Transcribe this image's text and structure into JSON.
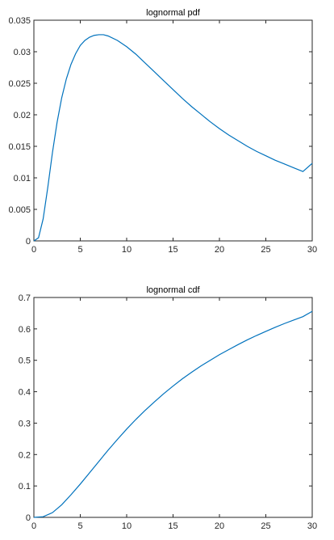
{
  "chart_data": [
    {
      "type": "line",
      "title": "lognormal pdf",
      "xlabel": "",
      "ylabel": "",
      "xlim": [
        0,
        30
      ],
      "ylim": [
        0,
        0.035
      ],
      "xticks": [
        0,
        5,
        10,
        15,
        20,
        25,
        30
      ],
      "xtick_labels": [
        "0",
        "5",
        "10",
        "15",
        "20",
        "25",
        "30"
      ],
      "yticks": [
        0,
        0.005,
        0.01,
        0.015,
        0.02,
        0.025,
        0.03,
        0.035
      ],
      "ytick_labels": [
        "0",
        "0.005",
        "0.01",
        "0.015",
        "0.02",
        "0.025",
        "0.03",
        "0.035"
      ],
      "grid": false,
      "series": [
        {
          "color": "#0072BD",
          "x": [
            0,
            0.5,
            1,
            1.5,
            2,
            2.5,
            3,
            3.5,
            4,
            4.5,
            5,
            5.5,
            6,
            6.5,
            7,
            7.5,
            8,
            9,
            10,
            11,
            12,
            13,
            14,
            15,
            16,
            17,
            18,
            19,
            20,
            21,
            22,
            23,
            24,
            25,
            26,
            27,
            28,
            29,
            30
          ],
          "y": [
            0,
            0.0005,
            0.0035,
            0.0085,
            0.014,
            0.0188,
            0.0227,
            0.0257,
            0.028,
            0.0297,
            0.031,
            0.0318,
            0.0323,
            0.0326,
            0.0327,
            0.0327,
            0.0325,
            0.0318,
            0.0308,
            0.0296,
            0.0282,
            0.0268,
            0.0254,
            0.024,
            0.0226,
            0.0213,
            0.0201,
            0.0189,
            0.0178,
            0.0168,
            0.0159,
            0.015,
            0.0142,
            0.0135,
            0.0128,
            0.0122,
            0.0116,
            0.011,
            0.0123
          ]
        }
      ]
    },
    {
      "type": "line",
      "title": "lognormal cdf",
      "xlabel": "",
      "ylabel": "",
      "xlim": [
        0,
        30
      ],
      "ylim": [
        0,
        0.7
      ],
      "xticks": [
        0,
        5,
        10,
        15,
        20,
        25,
        30
      ],
      "xtick_labels": [
        "0",
        "5",
        "10",
        "15",
        "20",
        "25",
        "30"
      ],
      "yticks": [
        0,
        0.1,
        0.2,
        0.3,
        0.4,
        0.5,
        0.6,
        0.7
      ],
      "ytick_labels": [
        "0",
        "0.1",
        "0.2",
        "0.3",
        "0.4",
        "0.5",
        "0.6",
        "0.7"
      ],
      "grid": false,
      "series": [
        {
          "color": "#0072BD",
          "x": [
            0,
            1,
            2,
            3,
            4,
            5,
            6,
            7,
            8,
            9,
            10,
            11,
            12,
            13,
            14,
            15,
            16,
            17,
            18,
            19,
            20,
            21,
            22,
            23,
            24,
            25,
            26,
            27,
            28,
            29,
            30
          ],
          "y": [
            0,
            0.002,
            0.015,
            0.04,
            0.072,
            0.106,
            0.142,
            0.178,
            0.214,
            0.248,
            0.281,
            0.312,
            0.341,
            0.368,
            0.394,
            0.418,
            0.441,
            0.462,
            0.482,
            0.5,
            0.518,
            0.534,
            0.55,
            0.565,
            0.579,
            0.592,
            0.605,
            0.617,
            0.628,
            0.639,
            0.656
          ]
        }
      ]
    }
  ]
}
